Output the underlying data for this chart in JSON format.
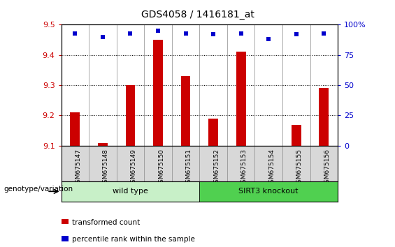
{
  "title": "GDS4058 / 1416181_at",
  "categories": [
    "GSM675147",
    "GSM675148",
    "GSM675149",
    "GSM675150",
    "GSM675151",
    "GSM675152",
    "GSM675153",
    "GSM675154",
    "GSM675155",
    "GSM675156"
  ],
  "bar_values": [
    9.21,
    9.11,
    9.3,
    9.45,
    9.33,
    9.19,
    9.41,
    9.1,
    9.17,
    9.29
  ],
  "percentile_values": [
    93,
    90,
    93,
    95,
    93,
    92,
    93,
    88,
    92,
    93
  ],
  "bar_color": "#cc0000",
  "percentile_color": "#0000cc",
  "ylim_left": [
    9.1,
    9.5
  ],
  "ylim_right": [
    0,
    100
  ],
  "yticks_left": [
    9.1,
    9.2,
    9.3,
    9.4,
    9.5
  ],
  "yticks_right": [
    0,
    25,
    50,
    75,
    100
  ],
  "grid_color": "black",
  "wild_type_label": "wild type",
  "knockout_label": "SIRT3 knockout",
  "wild_type_color": "#c8f0c8",
  "knockout_color": "#50d050",
  "genotype_label": "genotype/variation",
  "legend_bar_label": "transformed count",
  "legend_pct_label": "percentile rank within the sample",
  "label_bg_color": "#d8d8d8",
  "plot_bg_color": "#ffffff",
  "bar_bottom": 9.1
}
